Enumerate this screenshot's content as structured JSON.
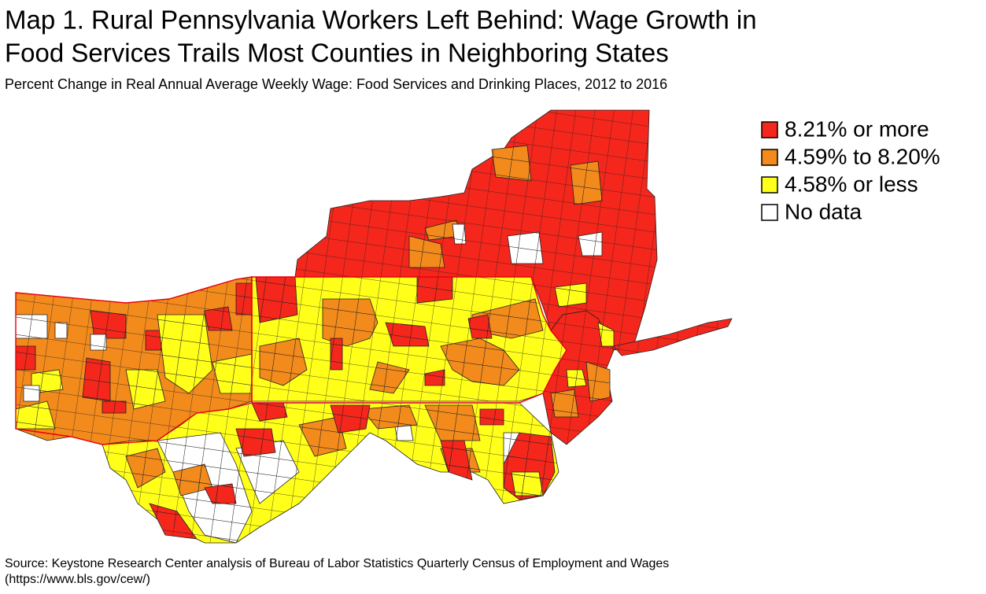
{
  "header": {
    "title": [
      "Map 1. Rural Pennsylvania Workers Left Behind: Wage Growth in",
      "Food Services Trails Most Counties in Neighboring States"
    ],
    "subtitle": "Percent Change in Real Annual Average Weekly Wage: Food Services and Drinking Places, 2012 to 2016"
  },
  "legend": {
    "items": [
      {
        "label": "8.21% or more",
        "color": "#f5261b"
      },
      {
        "label": "4.59% to 8.20%",
        "color": "#f28a1c"
      },
      {
        "label": "4.58% or less",
        "color": "#ffff1a"
      },
      {
        "label": "No data",
        "color": "#ffffff"
      }
    ]
  },
  "footer": {
    "source": [
      "Source: Keystone Research Center analysis of Bureau of Labor Statistics Quarterly Census of Employment and Wages",
      "(https://www.bls.gov/cew/)"
    ]
  }
}
